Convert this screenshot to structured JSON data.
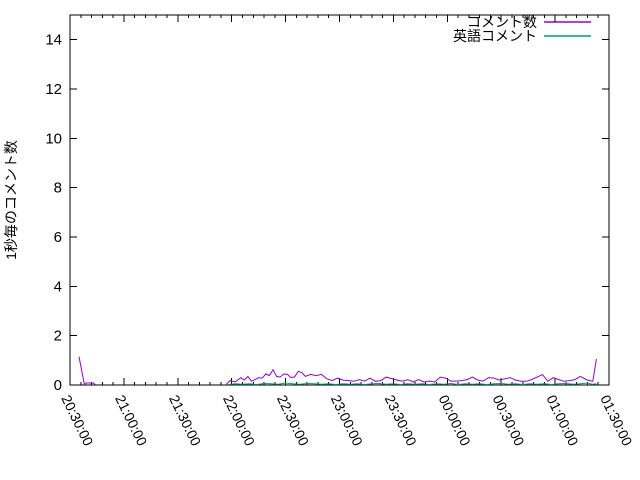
{
  "colors": {
    "background": "#ffffff",
    "axis": "#000000",
    "text": "#000000",
    "series_comment": "#9400D3",
    "series_english": "#009E73"
  },
  "chart_data": {
    "type": "line",
    "title": "",
    "xlabel": "",
    "ylabel": "1秒毎のコメント数",
    "x_unit": "minutes_after_20:30:00",
    "grid": false,
    "legend_position": "top-right-inside",
    "x_axis": {
      "start_label": "20:30:00",
      "end_label": "01:30:00",
      "tick_labels": [
        "20:30:00",
        "21:00:00",
        "21:30:00",
        "22:00:00",
        "22:30:00",
        "23:00:00",
        "23:30:00",
        "00:00:00",
        "00:30:00",
        "01:00:00",
        "01:30:00"
      ],
      "tick_minutes": [
        0,
        30,
        60,
        90,
        120,
        150,
        180,
        210,
        240,
        270,
        300
      ],
      "minor_step_minutes": 6,
      "label_rotation_deg": 64
    },
    "y_axis": {
      "min": 0,
      "max": 15,
      "ticks": [
        0,
        2,
        4,
        6,
        8,
        10,
        12,
        14
      ]
    },
    "series": [
      {
        "name": "コメント数",
        "color": "#9400D3",
        "segments": [
          [
            [
              5,
              1.15
            ],
            [
              8,
              0.02
            ],
            [
              9,
              0.08
            ],
            [
              13,
              0.08
            ],
            [
              14,
              0.02
            ]
          ],
          [
            [
              87,
              0.03
            ],
            [
              89,
              0.18
            ],
            [
              92,
              0.12
            ],
            [
              95,
              0.3
            ],
            [
              97,
              0.2
            ],
            [
              99,
              0.35
            ],
            [
              101,
              0.15
            ],
            [
              103,
              0.22
            ],
            [
              105,
              0.3
            ],
            [
              107,
              0.28
            ],
            [
              109,
              0.45
            ],
            [
              111,
              0.38
            ],
            [
              113,
              0.62
            ],
            [
              115,
              0.35
            ],
            [
              117,
              0.32
            ],
            [
              119,
              0.45
            ],
            [
              121,
              0.43
            ],
            [
              123,
              0.3
            ],
            [
              125,
              0.33
            ],
            [
              127,
              0.55
            ],
            [
              129,
              0.5
            ],
            [
              131,
              0.35
            ],
            [
              134,
              0.43
            ],
            [
              137,
              0.38
            ],
            [
              140,
              0.43
            ],
            [
              143,
              0.25
            ],
            [
              146,
              0.18
            ],
            [
              149,
              0.28
            ],
            [
              152,
              0.2
            ],
            [
              155,
              0.18
            ],
            [
              158,
              0.15
            ],
            [
              161,
              0.22
            ],
            [
              164,
              0.16
            ],
            [
              167,
              0.28
            ],
            [
              170,
              0.15
            ],
            [
              173,
              0.18
            ],
            [
              176,
              0.32
            ],
            [
              179,
              0.26
            ],
            [
              182,
              0.2
            ],
            [
              185,
              0.16
            ],
            [
              188,
              0.22
            ],
            [
              191,
              0.12
            ],
            [
              194,
              0.22
            ],
            [
              197,
              0.12
            ],
            [
              200,
              0.16
            ],
            [
              203,
              0.12
            ],
            [
              206,
              0.32
            ],
            [
              209,
              0.28
            ],
            [
              212,
              0.16
            ],
            [
              215,
              0.16
            ],
            [
              218,
              0.18
            ],
            [
              221,
              0.22
            ],
            [
              224,
              0.32
            ],
            [
              227,
              0.2
            ],
            [
              230,
              0.16
            ],
            [
              233,
              0.3
            ],
            [
              236,
              0.28
            ],
            [
              239,
              0.2
            ],
            [
              242,
              0.25
            ],
            [
              245,
              0.3
            ],
            [
              248,
              0.2
            ],
            [
              251,
              0.15
            ],
            [
              254,
              0.15
            ],
            [
              257,
              0.22
            ],
            [
              260,
              0.32
            ],
            [
              263,
              0.42
            ],
            [
              266,
              0.15
            ],
            [
              269,
              0.3
            ],
            [
              272,
              0.22
            ],
            [
              275,
              0.15
            ],
            [
              278,
              0.18
            ],
            [
              281,
              0.22
            ],
            [
              284,
              0.35
            ],
            [
              288,
              0.2
            ],
            [
              291,
              0.15
            ],
            [
              293,
              1.05
            ]
          ]
        ]
      },
      {
        "name": "英語コメント",
        "color": "#009E73",
        "segments": [
          [
            [
              88,
              0.02
            ],
            [
              92,
              0.05
            ],
            [
              96,
              0.03
            ],
            [
              100,
              0.05
            ],
            [
              104,
              0.02
            ],
            [
              108,
              0.06
            ],
            [
              112,
              0.05
            ],
            [
              116,
              0.03
            ],
            [
              120,
              0.08
            ],
            [
              124,
              0.05
            ],
            [
              128,
              0.03
            ],
            [
              132,
              0.06
            ],
            [
              136,
              0.05
            ],
            [
              140,
              0.03
            ],
            [
              144,
              0.05
            ],
            [
              148,
              0.02
            ],
            [
              152,
              0.05
            ],
            [
              156,
              0.03
            ],
            [
              160,
              0.05
            ],
            [
              164,
              0.02
            ],
            [
              168,
              0.05
            ],
            [
              172,
              0.06
            ],
            [
              176,
              0.03
            ],
            [
              180,
              0.05
            ],
            [
              184,
              0.02
            ],
            [
              188,
              0.05
            ],
            [
              192,
              0.03
            ],
            [
              196,
              0.05
            ],
            [
              200,
              0.02
            ],
            [
              204,
              0.05
            ],
            [
              208,
              0.03
            ],
            [
              212,
              0.06
            ],
            [
              216,
              0.02
            ],
            [
              220,
              0.05
            ],
            [
              224,
              0.03
            ],
            [
              228,
              0.05
            ],
            [
              232,
              0.02
            ],
            [
              236,
              0.05
            ],
            [
              240,
              0.06
            ],
            [
              244,
              0.03
            ],
            [
              248,
              0.05
            ],
            [
              252,
              0.02
            ],
            [
              256,
              0.05
            ],
            [
              260,
              0.03
            ],
            [
              264,
              0.05
            ],
            [
              268,
              0.02
            ],
            [
              272,
              0.05
            ],
            [
              276,
              0.06
            ],
            [
              280,
              0.03
            ],
            [
              284,
              0.05
            ],
            [
              288,
              0.08
            ],
            [
              291,
              0.03
            ],
            [
              293,
              0.05
            ]
          ]
        ]
      }
    ]
  }
}
